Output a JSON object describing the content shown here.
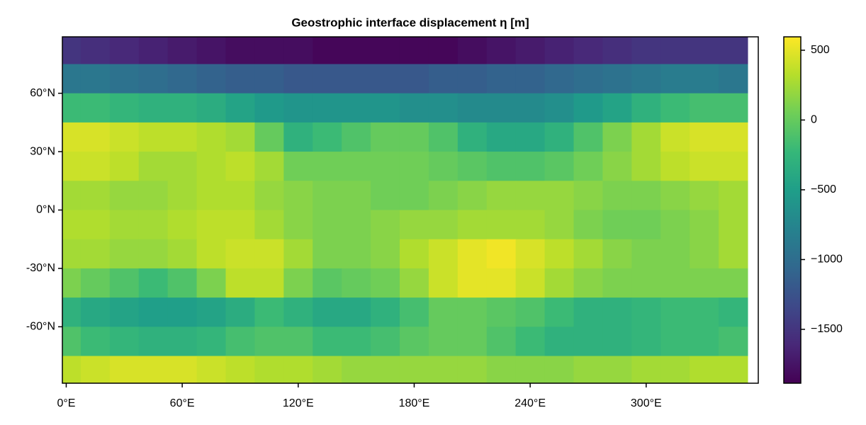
{
  "chart_data": {
    "type": "heatmap",
    "title": "Geostrophic interface displacement η [m]",
    "colormap": "viridis",
    "x": [
      0,
      15,
      30,
      45,
      60,
      75,
      90,
      105,
      120,
      135,
      150,
      165,
      180,
      195,
      210,
      225,
      240,
      255,
      270,
      285,
      300,
      315,
      330,
      345
    ],
    "y": [
      82.5,
      67.5,
      52.5,
      37.5,
      22.5,
      7.5,
      -7.5,
      -22.5,
      -37.5,
      -52.5,
      -67.5,
      -82.5
    ],
    "values": [
      [
        -1500,
        -1550,
        -1600,
        -1650,
        -1700,
        -1750,
        -1800,
        -1800,
        -1800,
        -1850,
        -1850,
        -1850,
        -1850,
        -1850,
        -1800,
        -1750,
        -1700,
        -1650,
        -1600,
        -1550,
        -1500,
        -1500,
        -1500,
        -1500
      ],
      [
        -900,
        -900,
        -950,
        -1000,
        -1050,
        -1100,
        -1150,
        -1150,
        -1200,
        -1200,
        -1200,
        -1200,
        -1200,
        -1150,
        -1150,
        -1100,
        -1100,
        -1050,
        -1000,
        -950,
        -900,
        -850,
        -850,
        -900
      ],
      [
        -200,
        -200,
        -250,
        -300,
        -300,
        -350,
        -450,
        -550,
        -600,
        -600,
        -600,
        -600,
        -650,
        -650,
        -700,
        -700,
        -700,
        -650,
        -550,
        -450,
        -300,
        -200,
        -150,
        -150
      ],
      [
        450,
        450,
        400,
        350,
        350,
        300,
        250,
        0,
        -300,
        -200,
        -100,
        0,
        0,
        -100,
        -300,
        -400,
        -400,
        -300,
        -100,
        100,
        250,
        400,
        450,
        450
      ],
      [
        400,
        400,
        350,
        250,
        250,
        300,
        350,
        250,
        50,
        50,
        50,
        50,
        50,
        0,
        -50,
        -100,
        -100,
        -50,
        50,
        150,
        250,
        350,
        400,
        400
      ],
      [
        250,
        250,
        200,
        200,
        250,
        300,
        300,
        200,
        150,
        100,
        100,
        50,
        50,
        100,
        150,
        200,
        200,
        200,
        150,
        100,
        100,
        150,
        200,
        250
      ],
      [
        300,
        300,
        250,
        250,
        300,
        350,
        350,
        250,
        150,
        100,
        100,
        150,
        200,
        200,
        250,
        250,
        250,
        200,
        100,
        50,
        50,
        100,
        150,
        250
      ],
      [
        250,
        250,
        200,
        200,
        250,
        350,
        400,
        400,
        250,
        100,
        100,
        150,
        300,
        400,
        500,
        550,
        450,
        350,
        250,
        150,
        100,
        100,
        150,
        250
      ],
      [
        100,
        0,
        -100,
        -200,
        -100,
        100,
        350,
        350,
        100,
        -50,
        0,
        50,
        200,
        400,
        500,
        500,
        400,
        250,
        150,
        100,
        100,
        100,
        100,
        100
      ],
      [
        -300,
        -400,
        -450,
        -500,
        -500,
        -450,
        -350,
        -200,
        -300,
        -400,
        -400,
        -300,
        -150,
        0,
        0,
        -50,
        -100,
        -200,
        -300,
        -300,
        -250,
        -200,
        -200,
        -250
      ],
      [
        -100,
        -200,
        -250,
        -300,
        -300,
        -250,
        -150,
        -100,
        -100,
        -200,
        -200,
        -150,
        -50,
        0,
        0,
        -100,
        -200,
        -300,
        -300,
        -300,
        -250,
        -200,
        -200,
        -150
      ],
      [
        350,
        400,
        450,
        450,
        450,
        400,
        350,
        300,
        300,
        250,
        200,
        200,
        200,
        200,
        200,
        150,
        150,
        150,
        200,
        200,
        250,
        250,
        300,
        300
      ]
    ],
    "xlim": [
      -2,
      358
    ],
    "ylim": [
      -89,
      89
    ],
    "xticks": [
      {
        "value": 0,
        "label": "0°E"
      },
      {
        "value": 60,
        "label": "60°E"
      },
      {
        "value": 120,
        "label": "120°E"
      },
      {
        "value": 180,
        "label": "180°E"
      },
      {
        "value": 240,
        "label": "240°E"
      },
      {
        "value": 300,
        "label": "300°E"
      }
    ],
    "yticks": [
      {
        "value": 60,
        "label": "60°N"
      },
      {
        "value": 30,
        "label": "30°N"
      },
      {
        "value": 0,
        "label": "0°N"
      },
      {
        "value": -30,
        "label": "-30°N"
      },
      {
        "value": -60,
        "label": "-60°N"
      }
    ],
    "clim": [
      -1886,
      596
    ],
    "cticks": [
      500,
      0,
      {
        "value": -500,
        "label": "−500"
      },
      {
        "value": -1000,
        "label": "−1000"
      },
      {
        "value": -1500,
        "label": "−1500"
      }
    ]
  }
}
